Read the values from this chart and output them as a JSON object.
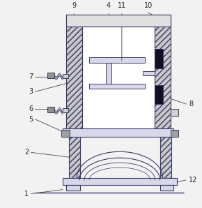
{
  "bg_color": "#f2f2f2",
  "line_color": "#3a3a6a",
  "label_color": "#222222",
  "figsize": [
    2.9,
    2.98
  ],
  "dpi": 100,
  "hatch_color": "#3a3a6a"
}
